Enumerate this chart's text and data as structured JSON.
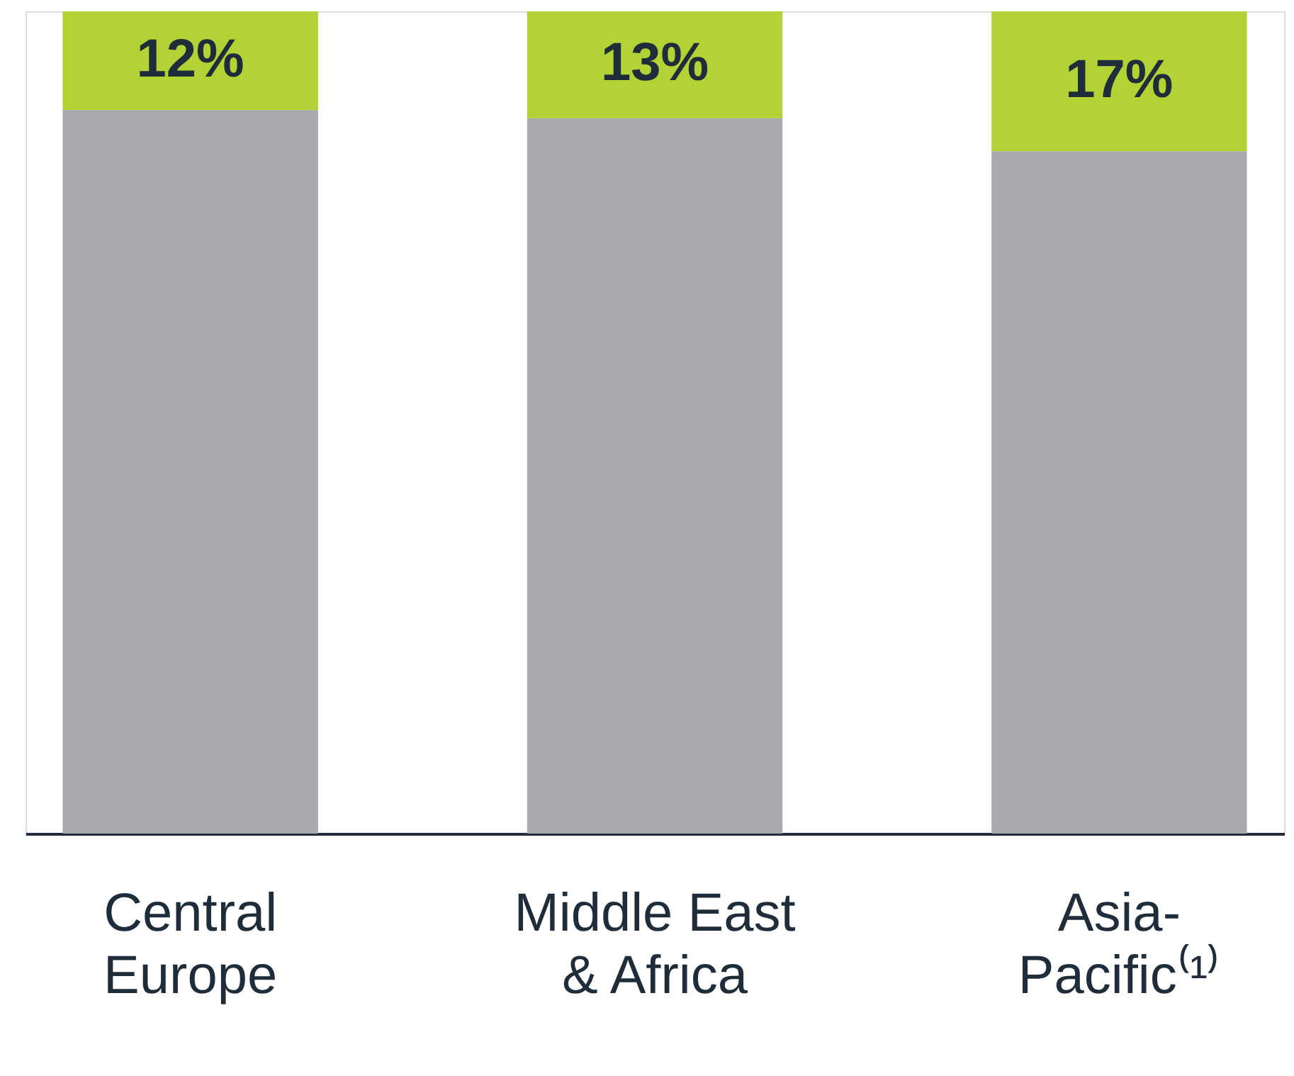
{
  "chart_data": {
    "type": "bar",
    "stacked": true,
    "legend": false,
    "grid": false,
    "categories": [
      "Central\nEurope",
      "Middle East\n& Africa",
      "Asia-\nPacific⁽¹⁾"
    ],
    "series": [
      {
        "color": "#a7a9ac",
        "values": [
          88,
          87,
          83
        ]
      },
      {
        "color": "#b2d235",
        "values": [
          12,
          13,
          17
        ],
        "value_labels": [
          "12%",
          "13%",
          "17%"
        ]
      }
    ]
  }
}
